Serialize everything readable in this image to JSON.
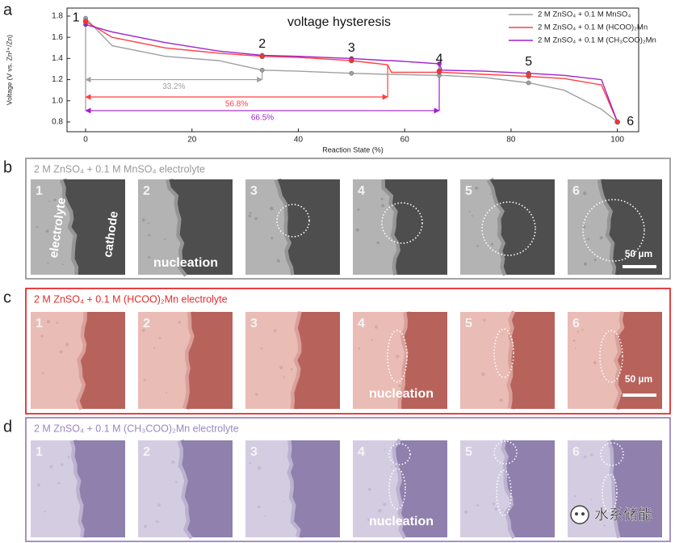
{
  "chart_data": {
    "type": "line",
    "panel_letter": "a",
    "title": "voltage hysteresis",
    "xlabel": "Reaction State (%)",
    "ylabel": "Voltage (V vs. Zn²⁺/Zn)",
    "xlim": [
      -3.5,
      104
    ],
    "ylim": [
      0.708,
      1.876
    ],
    "xticks": [
      0,
      20,
      40,
      60,
      80,
      100
    ],
    "yticks": [
      0.8,
      {
        "value": 1,
        "label": "1.0"
      },
      1.2,
      1.4,
      1.6,
      1.8
    ],
    "legend": "top-right",
    "x": [
      0,
      5,
      15,
      25,
      33.2,
      40,
      50,
      56.8,
      57.5,
      66.5,
      67,
      75,
      83.3,
      90,
      97,
      100
    ],
    "series": [
      {
        "name": "2 M ZnSO₄ + 0.1 M MnSO₄",
        "color": "#a0a0a0",
        "values": [
          1.78,
          1.52,
          1.42,
          1.38,
          1.29,
          1.28,
          1.26,
          1.25,
          1.25,
          1.24,
          1.24,
          1.22,
          1.17,
          1.1,
          0.92,
          0.8
        ]
      },
      {
        "name": "2 M ZnSO₄ + 0.1 M (HCOO)₂Mn",
        "color": "#ff4040",
        "values": [
          1.75,
          1.6,
          1.5,
          1.45,
          1.42,
          1.41,
          1.38,
          1.34,
          1.27,
          1.27,
          1.27,
          1.25,
          1.23,
          1.21,
          1.15,
          0.8
        ]
      },
      {
        "name": "2 M ZnSO₄ + 0.1 M (CH₃COO)₂Mn",
        "color": "#a020d0",
        "values": [
          1.72,
          1.65,
          1.55,
          1.47,
          1.43,
          1.42,
          1.4,
          1.38,
          1.38,
          1.35,
          1.29,
          1.28,
          1.26,
          1.24,
          1.2,
          0.8
        ]
      }
    ],
    "points": [
      {
        "label": "1",
        "x": 0,
        "y": 1.75
      },
      {
        "label": "2",
        "x": 33.2,
        "y": 1.42
      },
      {
        "label": "3",
        "x": 50,
        "y": 1.38
      },
      {
        "label": "4",
        "x": 66.5,
        "y": 1.28
      },
      {
        "label": "5",
        "x": 83.3,
        "y": 1.25
      },
      {
        "label": "6",
        "x": 100,
        "y": 0.8
      }
    ],
    "spans": [
      {
        "label": "33.2%",
        "value": 33.2,
        "y": 1.2,
        "color": "#a0a0a0"
      },
      {
        "label": "56.8%",
        "value": 56.8,
        "y": 1.036,
        "color": "#ff4040"
      },
      {
        "label": "66.5%",
        "value": 66.5,
        "y": 0.907,
        "color": "#a020d0"
      }
    ]
  },
  "panels": [
    {
      "letter": "b",
      "header": "2 M ZnSO₄ + 0.1 M MnSO₄  electrolyte",
      "color": "#999999",
      "tiles": [
        {
          "number": "1",
          "notes": [
            "electrolyte",
            "cathode"
          ]
        },
        {
          "number": "2",
          "notes": [
            "nucleation"
          ]
        },
        {
          "number": "3",
          "notes": []
        },
        {
          "number": "4",
          "notes": []
        },
        {
          "number": "5",
          "notes": []
        },
        {
          "number": "6",
          "notes": [
            "50 µm"
          ]
        }
      ]
    },
    {
      "letter": "c",
      "header": "2 M ZnSO₄ + 0.1 M (HCOO)₂Mn  electrolyte",
      "color": "#e52b2b",
      "tiles": [
        {
          "number": "1",
          "notes": []
        },
        {
          "number": "2",
          "notes": []
        },
        {
          "number": "3",
          "notes": []
        },
        {
          "number": "4",
          "notes": [
            "nucleation"
          ]
        },
        {
          "number": "5",
          "notes": []
        },
        {
          "number": "6",
          "notes": [
            "50 µm"
          ]
        }
      ]
    },
    {
      "letter": "d",
      "header": "2 M ZnSO₄ + 0.1 M (CH₃COO)₂Mn  electrolyte",
      "color": "#9b87c0",
      "tiles": [
        {
          "number": "1",
          "notes": []
        },
        {
          "number": "2",
          "notes": []
        },
        {
          "number": "3",
          "notes": []
        },
        {
          "number": "4",
          "notes": [
            "nucleation"
          ]
        },
        {
          "number": "5",
          "notes": []
        },
        {
          "number": "6",
          "notes": []
        }
      ]
    }
  ],
  "watermark": "水系储能"
}
